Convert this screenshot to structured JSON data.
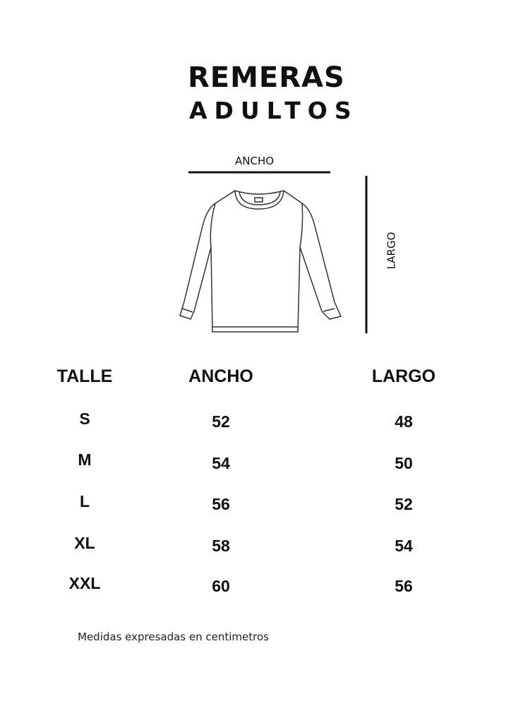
{
  "title": {
    "line1": "REMERAS",
    "line2": "ADULTOS"
  },
  "diagram": {
    "width_label": "ANCHO",
    "length_label": "LARGO"
  },
  "table": {
    "headers": [
      "TALLE",
      "ANCHO",
      "LARGO"
    ],
    "rows": [
      [
        "S",
        "52",
        "48"
      ],
      [
        "M",
        "54",
        "50"
      ],
      [
        "L",
        "56",
        "52"
      ],
      [
        "XL",
        "58",
        "54"
      ],
      [
        "XXL",
        "60",
        "56"
      ]
    ]
  },
  "footer": "Medidas expresadas en centimetros"
}
